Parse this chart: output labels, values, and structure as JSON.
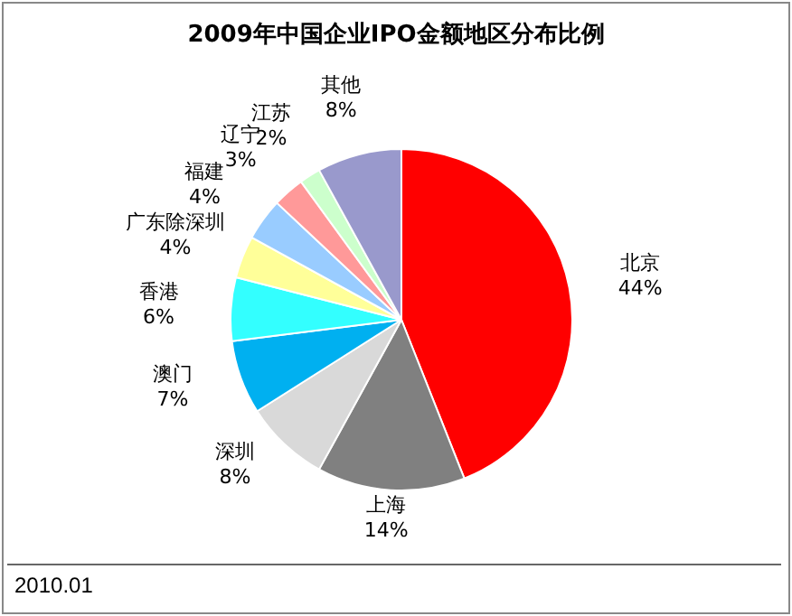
{
  "chart_data": {
    "type": "pie",
    "title": "2009年中国企业IPO金额地区分布比例",
    "categories": [
      "北京",
      "上海",
      "深圳",
      "澳门",
      "香港",
      "广东除深圳",
      "福建",
      "辽宁",
      "江苏",
      "其他"
    ],
    "values": [
      44,
      14,
      8,
      7,
      6,
      4,
      4,
      3,
      2,
      8
    ],
    "value_labels": [
      "44%",
      "14%",
      "8%",
      "7%",
      "6%",
      "4%",
      "4%",
      "3%",
      "2%",
      "8%"
    ],
    "colors": [
      "#ff0000",
      "#808080",
      "#d9d9d9",
      "#00b0f0",
      "#33ffff",
      "#ffff99",
      "#99ccff",
      "#ff9999",
      "#ccffcc",
      "#9999cc"
    ],
    "legend": false,
    "annotations": [
      "2010.01"
    ]
  }
}
